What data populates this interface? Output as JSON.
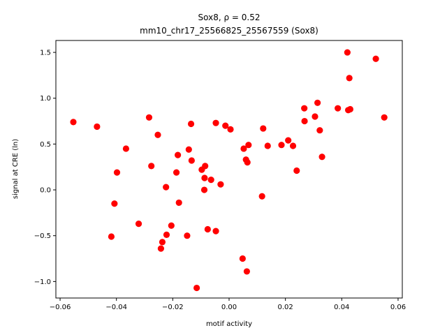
{
  "chart_data": {
    "type": "scatter",
    "title_line1": "Sox8, ρ = 0.52",
    "title_line2": "mm10_chr17_25566825_25567559 (Sox8)",
    "xlabel": "motif activity",
    "ylabel": "signal at CRE (ln)",
    "xlim": [
      -0.0615,
      0.0615
    ],
    "ylim": [
      -1.18,
      1.63
    ],
    "xticks": [
      -0.06,
      -0.04,
      -0.02,
      0.0,
      0.02,
      0.04,
      0.06
    ],
    "xtick_labels": [
      "−0.06",
      "−0.04",
      "−0.02",
      "0.00",
      "0.02",
      "0.04",
      "0.06"
    ],
    "yticks": [
      -1.0,
      -0.5,
      0.0,
      0.5,
      1.0,
      1.5
    ],
    "ytick_labels": [
      "−1.0",
      "−0.5",
      "0.0",
      "0.5",
      "1.0",
      "1.5"
    ],
    "grid": false,
    "marker_color": "#ff0000",
    "points": [
      [
        -0.0553,
        0.74
      ],
      [
        -0.0469,
        0.69
      ],
      [
        -0.0418,
        -0.51
      ],
      [
        -0.0407,
        -0.15
      ],
      [
        -0.0398,
        0.19
      ],
      [
        -0.0366,
        0.45
      ],
      [
        -0.0321,
        -0.37
      ],
      [
        -0.0284,
        0.79
      ],
      [
        -0.0276,
        0.26
      ],
      [
        -0.0253,
        0.6
      ],
      [
        -0.0242,
        -0.64
      ],
      [
        -0.0237,
        -0.57
      ],
      [
        -0.0224,
        0.03
      ],
      [
        -0.0222,
        -0.49
      ],
      [
        -0.0205,
        -0.39
      ],
      [
        -0.0187,
        0.19
      ],
      [
        -0.0182,
        0.38
      ],
      [
        -0.0178,
        -0.14
      ],
      [
        -0.0149,
        -0.5
      ],
      [
        -0.0143,
        0.44
      ],
      [
        -0.0135,
        0.72
      ],
      [
        -0.0133,
        0.32
      ],
      [
        -0.0115,
        -1.07
      ],
      [
        -0.0097,
        0.22
      ],
      [
        -0.0088,
        0.0
      ],
      [
        -0.0087,
        0.13
      ],
      [
        -0.0085,
        0.26
      ],
      [
        -0.0076,
        -0.43
      ],
      [
        -0.0064,
        0.11
      ],
      [
        -0.0047,
        -0.45
      ],
      [
        -0.0047,
        0.73
      ],
      [
        -0.003,
        0.06
      ],
      [
        -0.0013,
        0.7
      ],
      [
        0.0005,
        0.66
      ],
      [
        0.0048,
        -0.75
      ],
      [
        0.0052,
        0.45
      ],
      [
        0.006,
        0.33
      ],
      [
        0.0063,
        -0.89
      ],
      [
        0.0065,
        0.3
      ],
      [
        0.0069,
        0.49
      ],
      [
        0.0117,
        -0.07
      ],
      [
        0.0121,
        0.67
      ],
      [
        0.0137,
        0.48
      ],
      [
        0.0186,
        0.49
      ],
      [
        0.021,
        0.54
      ],
      [
        0.0227,
        0.48
      ],
      [
        0.024,
        0.21
      ],
      [
        0.0267,
        0.89
      ],
      [
        0.0268,
        0.75
      ],
      [
        0.0305,
        0.8
      ],
      [
        0.0314,
        0.95
      ],
      [
        0.0322,
        0.65
      ],
      [
        0.033,
        0.36
      ],
      [
        0.0386,
        0.89
      ],
      [
        0.042,
        1.5
      ],
      [
        0.0423,
        0.87
      ],
      [
        0.0427,
        1.22
      ],
      [
        0.043,
        0.88
      ],
      [
        0.0521,
        1.43
      ],
      [
        0.0551,
        0.79
      ]
    ]
  }
}
